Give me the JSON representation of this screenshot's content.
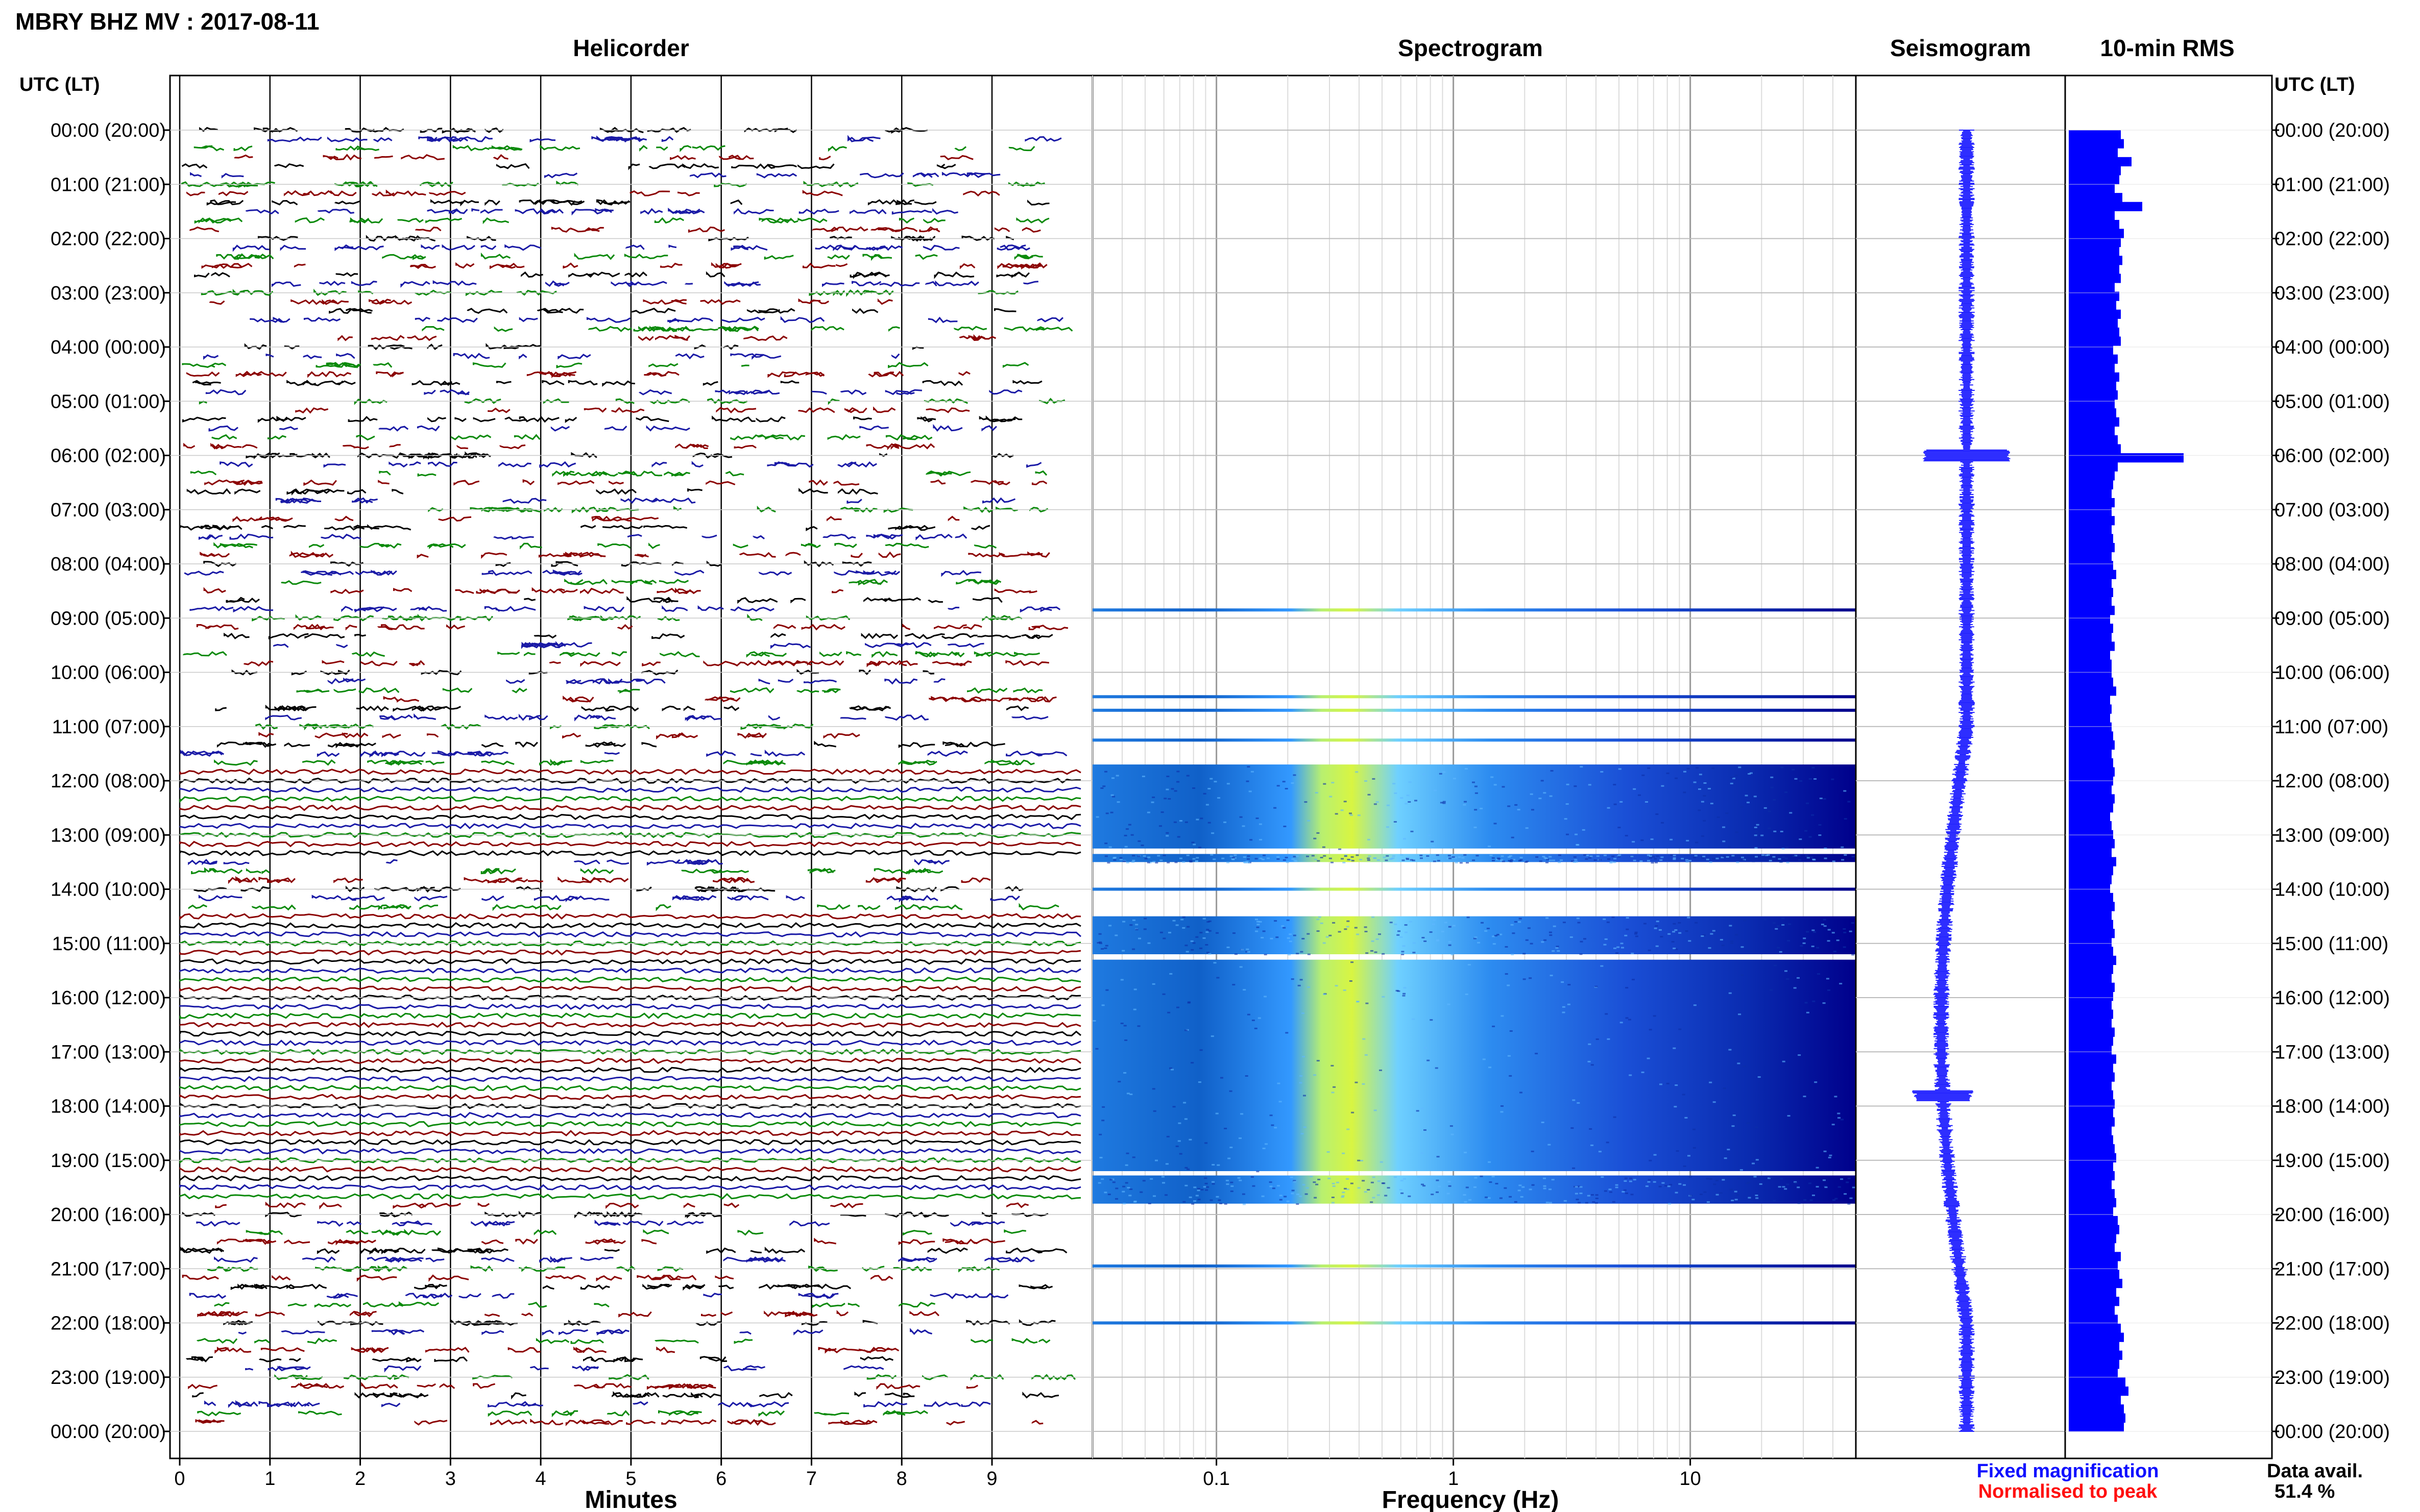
{
  "title": "MBRY BHZ MV : 2017-08-11",
  "panels": {
    "helicorder": "Helicorder",
    "spectrogram": "Spectrogram",
    "seismogram": "Seismogram",
    "rms": "10-min RMS"
  },
  "axis_header_left": "UTC (LT)",
  "axis_header_right": "UTC (LT)",
  "time_labels": [
    "00:00 (20:00)",
    "01:00 (21:00)",
    "02:00 (22:00)",
    "03:00 (23:00)",
    "04:00 (00:00)",
    "05:00 (01:00)",
    "06:00 (02:00)",
    "07:00 (03:00)",
    "08:00 (04:00)",
    "09:00 (05:00)",
    "10:00 (06:00)",
    "11:00 (07:00)",
    "12:00 (08:00)",
    "13:00 (09:00)",
    "14:00 (10:00)",
    "15:00 (11:00)",
    "16:00 (12:00)",
    "17:00 (13:00)",
    "18:00 (14:00)",
    "19:00 (15:00)",
    "20:00 (16:00)",
    "21:00 (17:00)",
    "22:00 (18:00)",
    "23:00 (19:00)",
    "00:00 (20:00)"
  ],
  "minutes_ticks": [
    "0",
    "1",
    "2",
    "3",
    "4",
    "5",
    "6",
    "7",
    "8",
    "9"
  ],
  "minutes_label": "Minutes",
  "freq_ticks": [
    "0.1",
    "1",
    "10"
  ],
  "freq_label": "Frequency (Hz)",
  "legend": {
    "fixed": "Fixed magnification",
    "normalised": "Normalised to peak",
    "fixed_color": "#1010ff",
    "normalised_color": "#ff1010"
  },
  "data_avail_label": "Data avail.",
  "data_avail_value": "51.4 %",
  "colors": {
    "helicorder_traces": [
      "#000000",
      "#1a1aa6",
      "#0a8a0a",
      "#8b0000"
    ],
    "rms_bar": "#0000ff",
    "seismogram": "#2020ff",
    "spectrogram_low": "#00008b",
    "spectrogram_mid": "#3399ff",
    "spectrogram_high": "#d8f542"
  },
  "chart_data": [
    {
      "type": "line",
      "name": "Helicorder",
      "xlabel": "Minutes",
      "xlim": [
        0,
        10
      ],
      "ylim_utc_hours": [
        0,
        24
      ],
      "note_rows": "one trace per 10-min interval, 145 rows",
      "continuous_data_hours": [
        [
          11.7,
          13.4
        ],
        [
          14.5,
          19.8
        ]
      ]
    },
    {
      "type": "heatmap",
      "name": "Spectrogram",
      "xlabel": "Frequency (Hz)",
      "xscale": "log",
      "xlim": [
        0.03,
        50
      ],
      "bands_utc_hours": [
        [
          11.7,
          13.25
        ],
        [
          13.35,
          13.5
        ],
        [
          14.5,
          15.2
        ],
        [
          15.3,
          19.2
        ],
        [
          19.28,
          19.8
        ]
      ],
      "isolated_lines_utc_hours": [
        8.85,
        10.45,
        10.7,
        11.25,
        14.0,
        20.95,
        22.0
      ]
    },
    {
      "type": "line",
      "name": "Seismogram",
      "ylim_utc_hours": [
        0,
        24
      ]
    },
    {
      "type": "bar",
      "name": "10-min RMS",
      "orientation": "horizontal",
      "ylim_utc_hours": [
        0,
        24
      ],
      "values": [
        0.34,
        0.36,
        0.32,
        0.41,
        0.34,
        0.33,
        0.3,
        0.35,
        0.48,
        0.3,
        0.33,
        0.36,
        0.34,
        0.33,
        0.35,
        0.33,
        0.34,
        0.3,
        0.33,
        0.31,
        0.34,
        0.32,
        0.33,
        0.34,
        0.29,
        0.32,
        0.3,
        0.33,
        0.31,
        0.32,
        0.3,
        0.31,
        0.33,
        0.3,
        0.32,
        0.34,
        0.75,
        0.32,
        0.3,
        0.29,
        0.28,
        0.3,
        0.28,
        0.3,
        0.28,
        0.29,
        0.3,
        0.28,
        0.29,
        0.31,
        0.28,
        0.29,
        0.28,
        0.3,
        0.27,
        0.29,
        0.28,
        0.3,
        0.27,
        0.28,
        0.28,
        0.29,
        0.31,
        0.27,
        0.28,
        0.27,
        0.28,
        0.29,
        0.3,
        0.28,
        0.29,
        0.3,
        0.29,
        0.28,
        0.3,
        0.29,
        0.27,
        0.28,
        0.29,
        0.3,
        0.28,
        0.31,
        0.29,
        0.28,
        0.27,
        0.29,
        0.3,
        0.28,
        0.29,
        0.3,
        0.28,
        0.29,
        0.31,
        0.29,
        0.28,
        0.3,
        0.29,
        0.28,
        0.29,
        0.28,
        0.3,
        0.29,
        0.28,
        0.31,
        0.29,
        0.3,
        0.28,
        0.29,
        0.3,
        0.29,
        0.3,
        0.28,
        0.29,
        0.3,
        0.31,
        0.29,
        0.3,
        0.28,
        0.3,
        0.31,
        0.29,
        0.32,
        0.33,
        0.31,
        0.3,
        0.34,
        0.32,
        0.33,
        0.35,
        0.31,
        0.33,
        0.3,
        0.32,
        0.34,
        0.36,
        0.33,
        0.35,
        0.33,
        0.32,
        0.37,
        0.39,
        0.34,
        0.36,
        0.37,
        0.36
      ],
      "scale_max": 1.0
    }
  ]
}
